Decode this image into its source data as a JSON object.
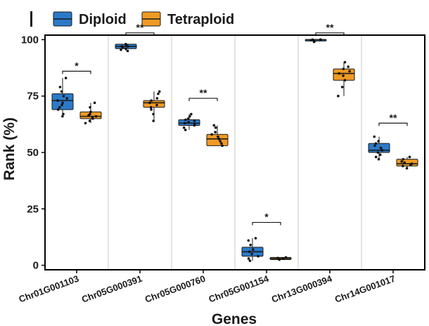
{
  "chart_data": {
    "type": "box",
    "title": "",
    "xlabel": "Genes",
    "ylabel": "Rank (%)",
    "ylim": [
      -2,
      102
    ],
    "yticks": [
      0,
      25,
      50,
      75,
      100
    ],
    "categories": [
      "Chr01G001103",
      "Chr05G000391",
      "Chr05G000760",
      "Chr05G001154",
      "Chr13G000394",
      "Chr14G001017"
    ],
    "legend": {
      "position": "top",
      "entries": [
        "Diploid",
        "Tetraploid"
      ]
    },
    "colors": {
      "Diploid": "#2b7ac9",
      "Tetraploid": "#f09a24",
      "median": "#1a1a1a",
      "frame": "#000000",
      "divider": "#c8c8c8"
    },
    "series": [
      {
        "name": "Diploid",
        "boxes": [
          {
            "q1": 69,
            "median": 73,
            "q3": 76,
            "min": 66,
            "max": 83,
            "points": [
              66,
              67,
              69,
              70,
              71,
              72,
              73,
              74,
              75,
              77,
              79,
              83
            ]
          },
          {
            "q1": 96,
            "median": 97,
            "q3": 98,
            "min": 95,
            "max": 98,
            "points": [
              95,
              95.5,
              96,
              96.5,
              97,
              97,
              97.5,
              98
            ]
          },
          {
            "q1": 62,
            "median": 63,
            "q3": 64.5,
            "min": 60,
            "max": 67,
            "points": [
              60,
              61,
              62,
              62.5,
              63,
              63.5,
              64,
              64.5,
              65,
              66,
              67
            ]
          },
          {
            "q1": 4,
            "median": 6,
            "q3": 8,
            "min": 2,
            "max": 12,
            "points": [
              2,
              3,
              4,
              5,
              6,
              7,
              9,
              11,
              12
            ]
          },
          {
            "q1": 99.5,
            "median": 100,
            "q3": 100,
            "min": 99,
            "max": 100,
            "points": [
              99,
              99.5,
              99.8,
              100,
              100,
              100
            ]
          },
          {
            "q1": 50,
            "median": 51,
            "q3": 54,
            "min": 47,
            "max": 57,
            "points": [
              47,
              48,
              49,
              50,
              51,
              52,
              53,
              54,
              55,
              57
            ]
          }
        ]
      },
      {
        "name": "Tetraploid",
        "boxes": [
          {
            "q1": 65,
            "median": 66,
            "q3": 68,
            "min": 63,
            "max": 72,
            "points": [
              63,
              64,
              65,
              65.5,
              66,
              66.5,
              67,
              68,
              70,
              72
            ]
          },
          {
            "q1": 70,
            "median": 72,
            "q3": 73,
            "min": 64,
            "max": 77,
            "points": [
              64,
              67,
              69,
              70,
              71,
              72,
              73,
              74,
              76,
              77
            ]
          },
          {
            "q1": 53,
            "median": 56,
            "q3": 58,
            "min": 53,
            "max": 62,
            "points": [
              53,
              54,
              55,
              56,
              57,
              58,
              59,
              61,
              62
            ]
          },
          {
            "q1": 2.5,
            "median": 3,
            "q3": 3.5,
            "min": 2.5,
            "max": 3.5,
            "points": [
              2.5,
              3,
              3,
              3.2,
              3.5
            ]
          },
          {
            "q1": 82,
            "median": 85,
            "q3": 87,
            "min": 75,
            "max": 90,
            "points": [
              75,
              79,
              82,
              84,
              85,
              86,
              87,
              88,
              90
            ]
          },
          {
            "q1": 44,
            "median": 45,
            "q3": 47,
            "min": 43,
            "max": 48,
            "points": [
              43,
              44,
              44.5,
              45,
              45.5,
              46,
              47,
              48
            ]
          }
        ]
      }
    ],
    "significance": [
      {
        "category": "Chr01G001103",
        "label": "*",
        "y": 86
      },
      {
        "category": "Chr05G000391",
        "label": "**",
        "y": 103
      },
      {
        "category": "Chr05G000760",
        "label": "**",
        "y": 74
      },
      {
        "category": "Chr05G001154",
        "label": "*",
        "y": 19
      },
      {
        "category": "Chr13G000394",
        "label": "**",
        "y": 103
      },
      {
        "category": "Chr14G001017",
        "label": "**",
        "y": 63
      }
    ]
  }
}
